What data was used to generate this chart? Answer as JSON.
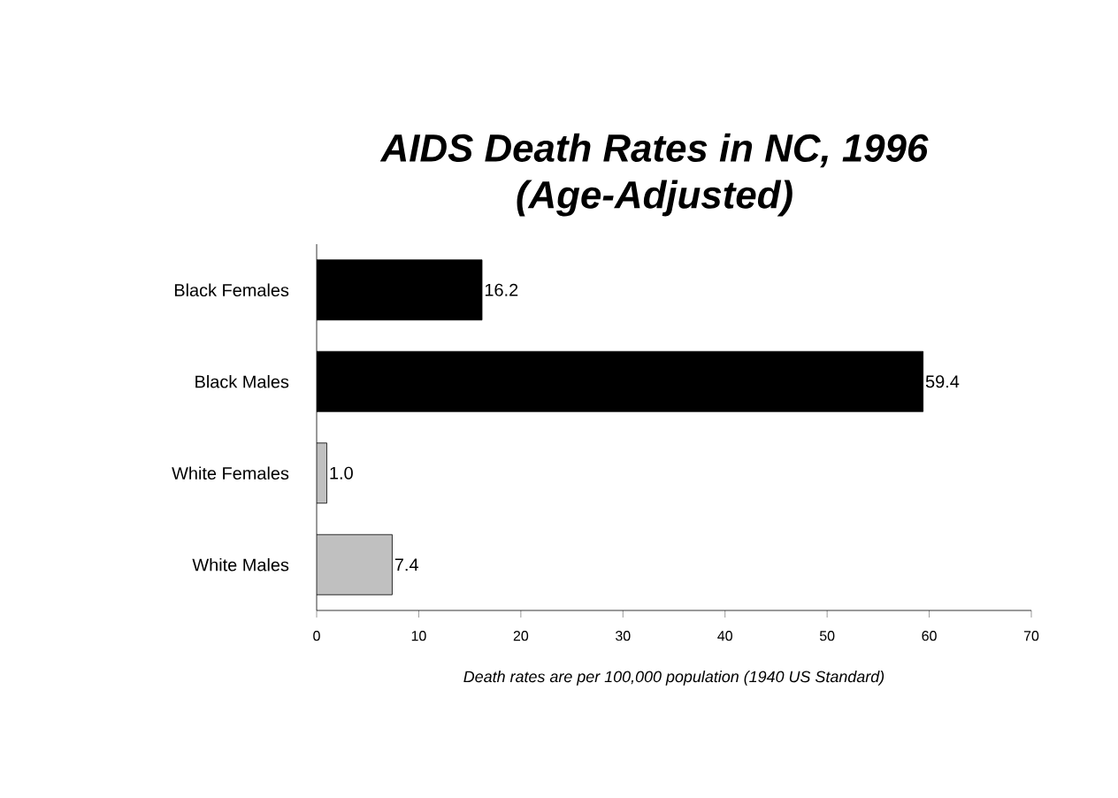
{
  "chart_data": {
    "type": "bar",
    "orientation": "horizontal",
    "title": "AIDS Death Rates in NC, 1996",
    "subtitle": "(Age-Adjusted)",
    "categories": [
      "Black Females",
      "Black Males",
      "White Females",
      "White Males"
    ],
    "values": [
      16.2,
      59.4,
      1.0,
      7.4
    ],
    "value_labels": [
      "16.2",
      "59.4",
      "1.0",
      "7.4"
    ],
    "colors": [
      "#000000",
      "#000000",
      "#c0c0c0",
      "#c0c0c0"
    ],
    "xlim": [
      0,
      70
    ],
    "xticks": [
      0,
      10,
      20,
      30,
      40,
      50,
      60,
      70
    ],
    "xlabel": "Death rates are per 100,000 population (1940 US Standard)"
  }
}
